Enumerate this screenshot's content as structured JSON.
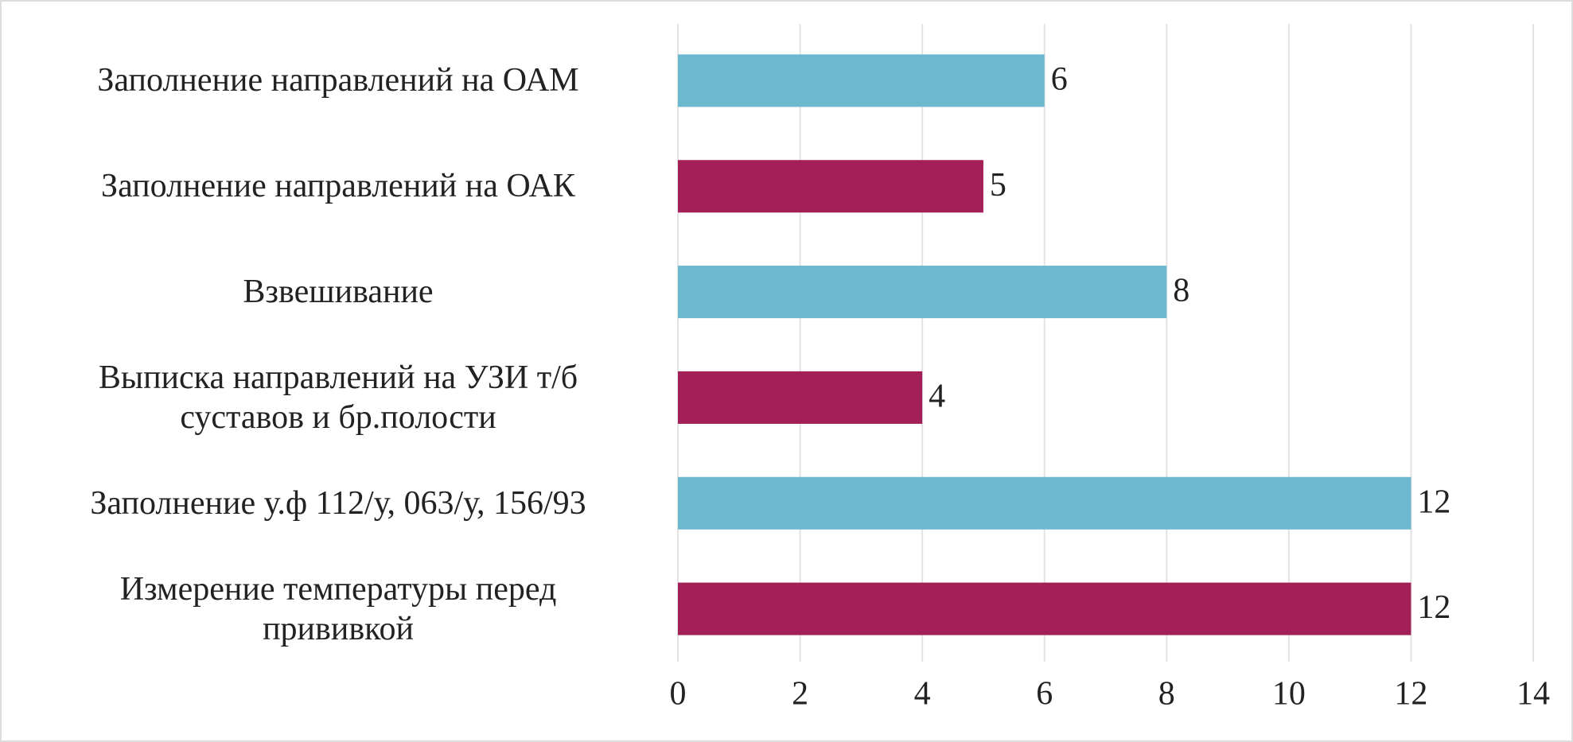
{
  "chart_data": {
    "type": "bar",
    "orientation": "horizontal",
    "categories": [
      "Заполнение направлений на ОАМ",
      "Заполнение направлений на ОАК",
      "Взвешивание",
      "Выписка направлений на УЗИ т/б\nсуставов и бр.полости",
      "Заполнение у.ф 112/у, 063/у, 156/93",
      "Измерение температуры перед\nпрививкой"
    ],
    "values": [
      6,
      5,
      8,
      4,
      12,
      12
    ],
    "colors": [
      "#6bb8cf",
      "#a31f57",
      "#6bb8cf",
      "#a31f57",
      "#6bb8cf",
      "#a31f57"
    ],
    "xlim": [
      0,
      14
    ],
    "xticks": [
      0,
      2,
      4,
      6,
      8,
      10,
      12,
      14
    ],
    "grid": true
  }
}
